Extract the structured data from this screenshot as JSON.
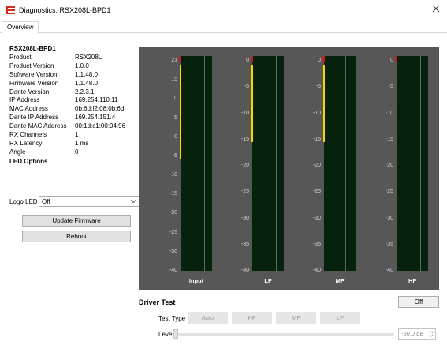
{
  "window": {
    "title": "Diagnostics: RSX208L-BPD1"
  },
  "tabs": [
    "Overview"
  ],
  "device": {
    "name": "RSX208L-BPD1",
    "rows": [
      {
        "key": "Product",
        "value": "RSX208L"
      },
      {
        "key": "Product Version",
        "value": "1.0.0"
      },
      {
        "key": "Software Version",
        "value": "1.1.48.0"
      },
      {
        "key": "Firmware Version",
        "value": "1.1.48.0"
      },
      {
        "key": "Dante Version",
        "value": "2.2.3.1"
      },
      {
        "key": "IP Address",
        "value": "169.254.110.11"
      },
      {
        "key": "MAC Address",
        "value": "0b:6d:f2:08:0b:6d"
      },
      {
        "key": "Dante IP Address",
        "value": "169.254.151.4"
      },
      {
        "key": "Dante MAC Address",
        "value": "00:1d:c1:00:04:96"
      },
      {
        "key": "RX Channels",
        "value": "1"
      },
      {
        "key": "RX Latency",
        "value": "1 ms"
      },
      {
        "key": "Angle",
        "value": "0"
      }
    ]
  },
  "led_options": {
    "title": "LED Options",
    "logo_led_label": "Logo LED",
    "logo_led_value": "Off"
  },
  "buttons": {
    "update_firmware": "Update Firmware",
    "reboot": "Reboot"
  },
  "meters": {
    "colors": {
      "background": "#575757",
      "meter": "#06210c",
      "level": "#ffd400",
      "clip": "#c42020"
    },
    "channels": [
      {
        "name": "Input",
        "scale": [
          "21",
          "15",
          "10",
          "5",
          "0",
          "-5",
          "-10",
          "-15",
          "-20",
          "-25",
          "-30",
          "-40"
        ],
        "level_top": 0.04,
        "level_bottom": 0.48
      },
      {
        "name": "LF",
        "scale": [
          "0",
          "-5",
          "-10",
          "-15",
          "-20",
          "-25",
          "-30",
          "-35",
          "-40"
        ],
        "level_top": 0.04,
        "level_bottom": 0.4
      },
      {
        "name": "MF",
        "scale": [
          "0",
          "-5",
          "-10",
          "-15",
          "-20",
          "-25",
          "-30",
          "-35",
          "-40"
        ],
        "level_top": 0.04,
        "level_bottom": 0.4
      },
      {
        "name": "HF",
        "scale": [
          "0",
          "-5",
          "-10",
          "-15",
          "-20",
          "-25",
          "-30",
          "-35",
          "-40"
        ],
        "level_top": null,
        "level_bottom": null
      }
    ]
  },
  "driver_test": {
    "title": "Driver Test",
    "off_label": "Off",
    "test_type_label": "Test Type",
    "test_types": [
      "Auto",
      "HF",
      "MF",
      "LF"
    ],
    "level_label": "Level",
    "level_value": "-60.0 dB"
  }
}
